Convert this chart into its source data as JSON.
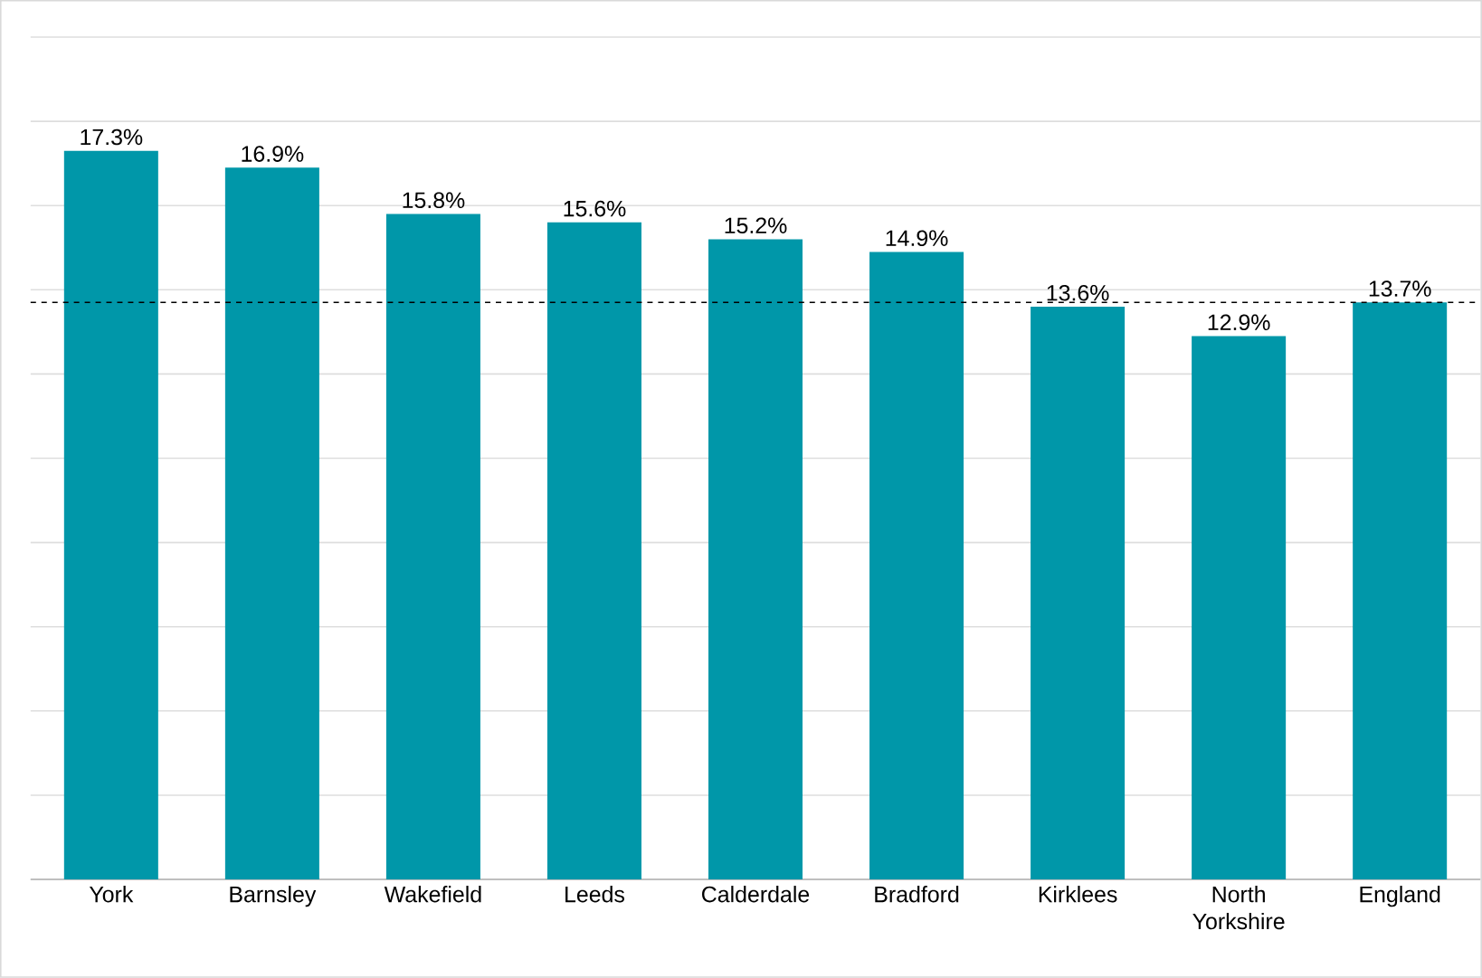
{
  "chart_data": {
    "type": "bar",
    "categories": [
      "York",
      "Barnsley",
      "Wakefield",
      "Leeds",
      "Calderdale",
      "Bradford",
      "Kirklees",
      "North Yorkshire",
      "England"
    ],
    "values": [
      17.3,
      16.9,
      15.8,
      15.6,
      15.2,
      14.9,
      13.6,
      12.9,
      13.7
    ],
    "value_labels": [
      "17.3%",
      "16.9%",
      "15.8%",
      "15.6%",
      "15.2%",
      "14.9%",
      "13.6%",
      "12.9%",
      "13.7%"
    ],
    "color": "#0097a9",
    "grid": "y",
    "ref_lines": [
      {
        "axis": "y",
        "value": 13.7,
        "color": "#000000",
        "line_style": "dashed"
      }
    ]
  }
}
